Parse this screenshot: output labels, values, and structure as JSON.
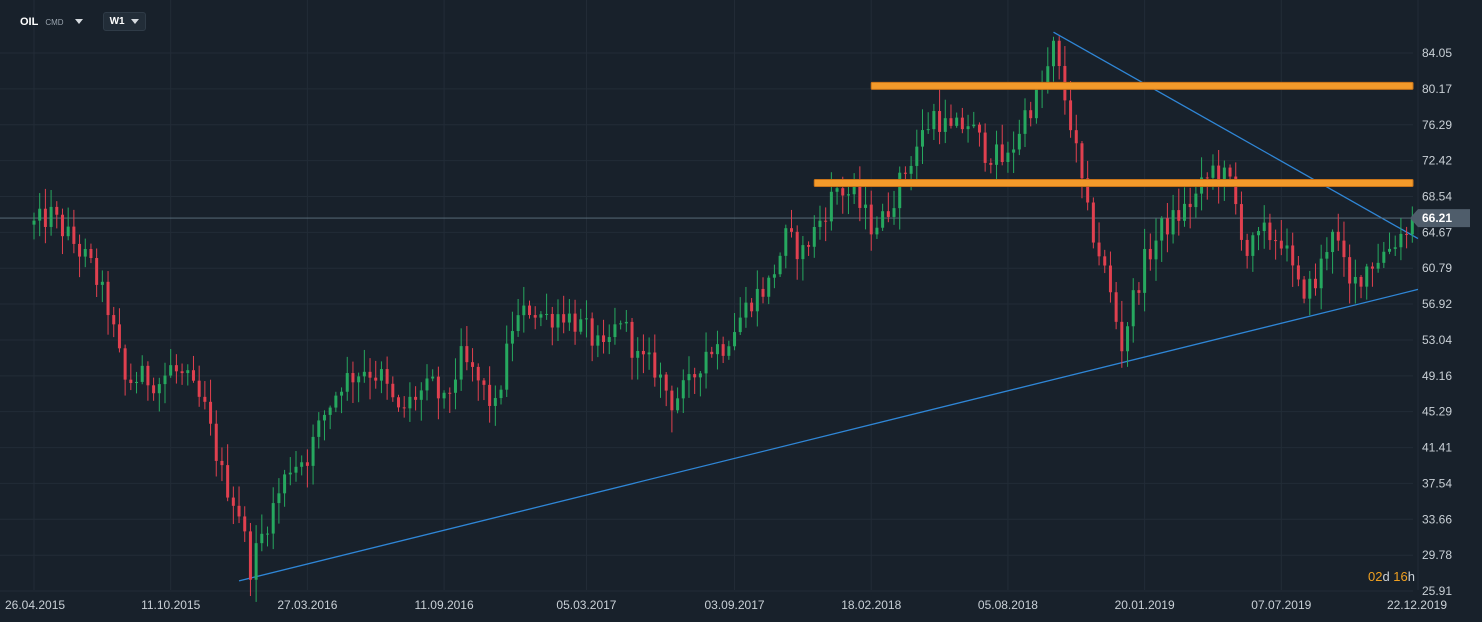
{
  "toolbar": {
    "symbol": "OIL",
    "symbol_type": "CMD",
    "timeframe": "W1"
  },
  "countdown": {
    "days": "02",
    "days_unit": "d",
    "hours": "16",
    "hours_unit": "h"
  },
  "colors": {
    "background": "#18212b",
    "grid": "#222c37",
    "up": "#26a85f",
    "down": "#e0404f",
    "trendline": "#2f86d6",
    "resistance": "#f39a2a",
    "price_line": "#5f7482",
    "price_tag": "#4f5d6b",
    "axis_text": "#c9d0d6"
  },
  "chart_data": {
    "type": "candlestick",
    "title": "",
    "yticks": [
      "84.05",
      "80.17",
      "76.29",
      "72.42",
      "68.54",
      "64.67",
      "60.79",
      "56.92",
      "53.04",
      "49.16",
      "45.29",
      "41.41",
      "37.54",
      "33.66",
      "29.78",
      "25.91"
    ],
    "xticks": [
      "26.04.2015",
      "11.10.2015",
      "27.03.2016",
      "11.09.2016",
      "05.03.2017",
      "03.09.2017",
      "18.02.2018",
      "05.08.2018",
      "20.01.2019",
      "07.07.2019",
      "22.12.2019"
    ],
    "ylim": [
      25.91,
      84.05
    ],
    "current_price": "66.21",
    "grid": true,
    "price_path": [
      [
        "26.04.2015",
        65.5
      ],
      [
        "17.05.2015",
        66.5
      ],
      [
        "14.06.2015",
        63.5
      ],
      [
        "05.07.2015",
        61.0
      ],
      [
        "26.07.2015",
        56.5
      ],
      [
        "16.08.2015",
        48.5
      ],
      [
        "06.09.2015",
        49.0
      ],
      [
        "27.09.2015",
        48.5
      ],
      [
        "11.10.2015",
        50.0
      ],
      [
        "01.11.2015",
        48.5
      ],
      [
        "22.11.2015",
        45.5
      ],
      [
        "13.12.2015",
        38.5
      ],
      [
        "03.01.2016",
        34.5
      ],
      [
        "17.01.2016",
        28.5
      ],
      [
        "07.02.2016",
        33.5
      ],
      [
        "06.03.2016",
        39.5
      ],
      [
        "27.03.2016",
        40.5
      ],
      [
        "17.04.2016",
        45.0
      ],
      [
        "08.05.2016",
        48.5
      ],
      [
        "05.06.2016",
        50.0
      ],
      [
        "26.06.2016",
        49.0
      ],
      [
        "17.07.2016",
        45.0
      ],
      [
        "07.08.2016",
        47.0
      ],
      [
        "28.08.2016",
        48.0
      ],
      [
        "11.09.2016",
        46.0
      ],
      [
        "02.10.2016",
        51.0
      ],
      [
        "23.10.2016",
        48.5
      ],
      [
        "13.11.2016",
        45.5
      ],
      [
        "04.12.2016",
        54.5
      ],
      [
        "25.12.2016",
        56.5
      ],
      [
        "15.01.2017",
        55.5
      ],
      [
        "05.02.2017",
        56.0
      ],
      [
        "05.03.2017",
        54.0
      ],
      [
        "26.03.2017",
        51.5
      ],
      [
        "16.04.2017",
        55.5
      ],
      [
        "07.05.2017",
        51.0
      ],
      [
        "28.05.2017",
        50.0
      ],
      [
        "18.06.2017",
        46.5
      ],
      [
        "09.07.2017",
        48.0
      ],
      [
        "30.07.2017",
        52.0
      ],
      [
        "20.08.2017",
        52.5
      ],
      [
        "03.09.2017",
        54.5
      ],
      [
        "24.09.2017",
        57.5
      ],
      [
        "15.10.2017",
        59.0
      ],
      [
        "05.11.2017",
        64.0
      ],
      [
        "26.11.2017",
        62.5
      ],
      [
        "17.12.2017",
        66.0
      ],
      [
        "07.01.2018",
        69.5
      ],
      [
        "28.01.2018",
        68.5
      ],
      [
        "18.02.2018",
        65.5
      ],
      [
        "04.03.2018",
        66.0
      ],
      [
        "25.03.2018",
        70.0
      ],
      [
        "15.04.2018",
        74.0
      ],
      [
        "06.05.2018",
        77.5
      ],
      [
        "27.05.2018",
        75.5
      ],
      [
        "17.06.2018",
        76.5
      ],
      [
        "08.07.2018",
        73.5
      ],
      [
        "29.07.2018",
        72.5
      ],
      [
        "05.08.2018",
        72.5
      ],
      [
        "26.08.2018",
        77.5
      ],
      [
        "16.09.2018",
        80.0
      ],
      [
        "30.09.2018",
        84.5
      ],
      [
        "21.10.2018",
        76.5
      ],
      [
        "11.11.2018",
        66.5
      ],
      [
        "02.12.2018",
        60.5
      ],
      [
        "23.12.2018",
        52.5
      ],
      [
        "06.01.2019",
        57.5
      ],
      [
        "20.01.2019",
        61.5
      ],
      [
        "10.02.2019",
        65.0
      ],
      [
        "03.03.2019",
        66.5
      ],
      [
        "24.03.2019",
        68.5
      ],
      [
        "14.04.2019",
        71.5
      ],
      [
        "05.05.2019",
        70.0
      ],
      [
        "26.05.2019",
        62.5
      ],
      [
        "16.06.2019",
        64.5
      ],
      [
        "07.07.2019",
        64.0
      ],
      [
        "28.07.2019",
        58.5
      ],
      [
        "18.08.2019",
        59.0
      ],
      [
        "08.09.2019",
        65.5
      ],
      [
        "29.09.2019",
        58.5
      ],
      [
        "20.10.2019",
        61.0
      ],
      [
        "10.11.2019",
        62.5
      ],
      [
        "01.12.2019",
        64.5
      ],
      [
        "15.12.2019",
        66.2
      ]
    ],
    "trendlines": [
      {
        "name": "",
        "from": [
          "03.01.2016",
          27.0
        ],
        "to": [
          "22.12.2019",
          58.5
        ]
      },
      {
        "name": "",
        "from": [
          "30.09.2018",
          86.3
        ],
        "to": [
          "22.12.2019",
          64.0
        ]
      }
    ],
    "horizontal_levels": [
      {
        "name": "",
        "value": 80.5,
        "from": "18.02.2018"
      },
      {
        "name": "",
        "value": 70.0,
        "from": "10.12.2017"
      }
    ]
  }
}
